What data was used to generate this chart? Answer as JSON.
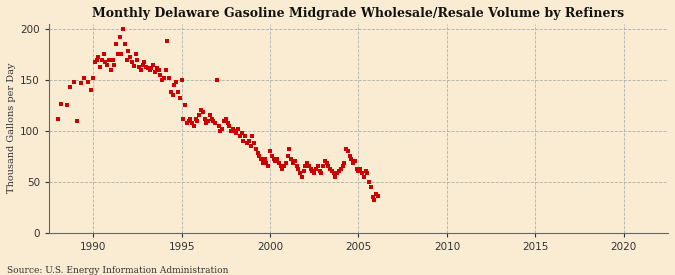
{
  "title": "Monthly Delaware Gasoline Midgrade Wholesale/Resale Volume by Refiners",
  "ylabel": "Thousand Gallons per Day",
  "source": "Source: U.S. Energy Information Administration",
  "background_color": "#faecd2",
  "marker_color": "#cc0000",
  "xlim": [
    1987.5,
    2022.5
  ],
  "ylim": [
    0,
    205
  ],
  "xticks": [
    1990,
    1995,
    2000,
    2005,
    2010,
    2015,
    2020
  ],
  "yticks": [
    0,
    50,
    100,
    150,
    200
  ],
  "data": [
    [
      1988.0,
      112
    ],
    [
      1988.2,
      126
    ],
    [
      1988.5,
      125
    ],
    [
      1988.7,
      143
    ],
    [
      1988.9,
      148
    ],
    [
      1989.1,
      110
    ],
    [
      1989.3,
      147
    ],
    [
      1989.5,
      152
    ],
    [
      1989.7,
      148
    ],
    [
      1989.9,
      140
    ],
    [
      1990.0,
      152
    ],
    [
      1990.1,
      168
    ],
    [
      1990.2,
      170
    ],
    [
      1990.3,
      172
    ],
    [
      1990.4,
      163
    ],
    [
      1990.5,
      170
    ],
    [
      1990.6,
      175
    ],
    [
      1990.7,
      168
    ],
    [
      1990.8,
      165
    ],
    [
      1990.9,
      170
    ],
    [
      1991.0,
      160
    ],
    [
      1991.1,
      170
    ],
    [
      1991.2,
      165
    ],
    [
      1991.3,
      185
    ],
    [
      1991.4,
      175
    ],
    [
      1991.5,
      192
    ],
    [
      1991.6,
      175
    ],
    [
      1991.7,
      200
    ],
    [
      1991.8,
      185
    ],
    [
      1991.9,
      170
    ],
    [
      1992.0,
      178
    ],
    [
      1992.1,
      172
    ],
    [
      1992.2,
      168
    ],
    [
      1992.3,
      164
    ],
    [
      1992.4,
      175
    ],
    [
      1992.5,
      170
    ],
    [
      1992.6,
      163
    ],
    [
      1992.7,
      160
    ],
    [
      1992.8,
      165
    ],
    [
      1992.9,
      168
    ],
    [
      1993.0,
      163
    ],
    [
      1993.1,
      162
    ],
    [
      1993.2,
      160
    ],
    [
      1993.3,
      162
    ],
    [
      1993.4,
      165
    ],
    [
      1993.5,
      158
    ],
    [
      1993.6,
      162
    ],
    [
      1993.7,
      160
    ],
    [
      1993.8,
      155
    ],
    [
      1993.9,
      150
    ],
    [
      1994.0,
      152
    ],
    [
      1994.1,
      160
    ],
    [
      1994.2,
      188
    ],
    [
      1994.3,
      152
    ],
    [
      1994.4,
      138
    ],
    [
      1994.5,
      135
    ],
    [
      1994.6,
      145
    ],
    [
      1994.7,
      148
    ],
    [
      1994.8,
      138
    ],
    [
      1994.9,
      132
    ],
    [
      1995.0,
      150
    ],
    [
      1995.1,
      112
    ],
    [
      1995.2,
      125
    ],
    [
      1995.3,
      108
    ],
    [
      1995.4,
      110
    ],
    [
      1995.5,
      112
    ],
    [
      1995.6,
      108
    ],
    [
      1995.7,
      105
    ],
    [
      1995.8,
      112
    ],
    [
      1995.9,
      110
    ],
    [
      1996.0,
      115
    ],
    [
      1996.1,
      120
    ],
    [
      1996.2,
      118
    ],
    [
      1996.3,
      112
    ],
    [
      1996.4,
      108
    ],
    [
      1996.5,
      110
    ],
    [
      1996.6,
      115
    ],
    [
      1996.7,
      112
    ],
    [
      1996.8,
      110
    ],
    [
      1996.9,
      108
    ],
    [
      1997.0,
      150
    ],
    [
      1997.1,
      105
    ],
    [
      1997.2,
      100
    ],
    [
      1997.3,
      102
    ],
    [
      1997.4,
      110
    ],
    [
      1997.5,
      112
    ],
    [
      1997.6,
      108
    ],
    [
      1997.7,
      105
    ],
    [
      1997.8,
      100
    ],
    [
      1997.9,
      102
    ],
    [
      1998.0,
      100
    ],
    [
      1998.1,
      98
    ],
    [
      1998.2,
      102
    ],
    [
      1998.3,
      95
    ],
    [
      1998.4,
      98
    ],
    [
      1998.5,
      90
    ],
    [
      1998.6,
      95
    ],
    [
      1998.7,
      88
    ],
    [
      1998.8,
      90
    ],
    [
      1998.9,
      85
    ],
    [
      1999.0,
      95
    ],
    [
      1999.1,
      88
    ],
    [
      1999.2,
      82
    ],
    [
      1999.3,
      78
    ],
    [
      1999.4,
      75
    ],
    [
      1999.5,
      72
    ],
    [
      1999.6,
      68
    ],
    [
      1999.7,
      72
    ],
    [
      1999.8,
      68
    ],
    [
      1999.9,
      65
    ],
    [
      2000.0,
      80
    ],
    [
      2000.1,
      75
    ],
    [
      2000.2,
      72
    ],
    [
      2000.3,
      70
    ],
    [
      2000.4,
      72
    ],
    [
      2000.5,
      68
    ],
    [
      2000.6,
      65
    ],
    [
      2000.7,
      62
    ],
    [
      2000.8,
      65
    ],
    [
      2000.9,
      68
    ],
    [
      2001.0,
      75
    ],
    [
      2001.1,
      82
    ],
    [
      2001.2,
      72
    ],
    [
      2001.3,
      68
    ],
    [
      2001.4,
      70
    ],
    [
      2001.5,
      65
    ],
    [
      2001.6,
      62
    ],
    [
      2001.7,
      58
    ],
    [
      2001.8,
      55
    ],
    [
      2001.9,
      60
    ],
    [
      2002.0,
      65
    ],
    [
      2002.1,
      68
    ],
    [
      2002.2,
      65
    ],
    [
      2002.3,
      62
    ],
    [
      2002.4,
      60
    ],
    [
      2002.5,
      58
    ],
    [
      2002.6,
      62
    ],
    [
      2002.7,
      65
    ],
    [
      2002.8,
      60
    ],
    [
      2002.9,
      58
    ],
    [
      2003.0,
      65
    ],
    [
      2003.1,
      70
    ],
    [
      2003.2,
      68
    ],
    [
      2003.3,
      65
    ],
    [
      2003.4,
      62
    ],
    [
      2003.5,
      60
    ],
    [
      2003.6,
      58
    ],
    [
      2003.7,
      55
    ],
    [
      2003.8,
      58
    ],
    [
      2003.9,
      60
    ],
    [
      2004.0,
      62
    ],
    [
      2004.1,
      65
    ],
    [
      2004.2,
      68
    ],
    [
      2004.3,
      82
    ],
    [
      2004.4,
      80
    ],
    [
      2004.5,
      75
    ],
    [
      2004.6,
      72
    ],
    [
      2004.7,
      68
    ],
    [
      2004.8,
      70
    ],
    [
      2004.9,
      62
    ],
    [
      2005.0,
      60
    ],
    [
      2005.1,
      62
    ],
    [
      2005.2,
      58
    ],
    [
      2005.3,
      55
    ],
    [
      2005.4,
      60
    ],
    [
      2005.5,
      58
    ],
    [
      2005.6,
      50
    ],
    [
      2005.7,
      45
    ],
    [
      2005.8,
      35
    ],
    [
      2005.9,
      32
    ],
    [
      2006.0,
      38
    ],
    [
      2006.1,
      36
    ]
  ]
}
